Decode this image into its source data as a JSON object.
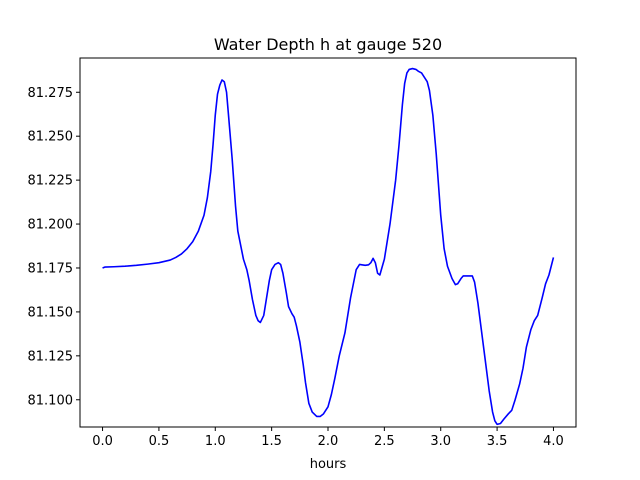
{
  "chart_data": {
    "type": "line",
    "title": "Water Depth h at gauge 520",
    "xlabel": "hours",
    "ylabel": "",
    "xlim": [
      -0.2,
      4.2
    ],
    "ylim": [
      81.0845,
      81.2945
    ],
    "grid": false,
    "legend": "none",
    "xticks": [
      0.0,
      0.5,
      1.0,
      1.5,
      2.0,
      2.5,
      3.0,
      3.5,
      4.0
    ],
    "xtick_labels": [
      "0.0",
      "0.5",
      "1.0",
      "1.5",
      "2.0",
      "2.5",
      "3.0",
      "3.5",
      "4.0"
    ],
    "yticks": [
      81.1,
      81.125,
      81.15,
      81.175,
      81.2,
      81.225,
      81.25,
      81.275
    ],
    "ytick_labels": [
      "81.100",
      "81.125",
      "81.150",
      "81.175",
      "81.200",
      "81.225",
      "81.250",
      "81.275"
    ],
    "series": [
      {
        "color": "#0000ff",
        "x": [
          0.0,
          0.02,
          0.1,
          0.2,
          0.3,
          0.4,
          0.5,
          0.6,
          0.65,
          0.7,
          0.75,
          0.8,
          0.85,
          0.9,
          0.93,
          0.96,
          0.98,
          1.0,
          1.02,
          1.04,
          1.06,
          1.08,
          1.1,
          1.12,
          1.15,
          1.18,
          1.2,
          1.25,
          1.28,
          1.3,
          1.33,
          1.36,
          1.38,
          1.4,
          1.43,
          1.45,
          1.48,
          1.5,
          1.53,
          1.56,
          1.58,
          1.6,
          1.63,
          1.65,
          1.68,
          1.7,
          1.72,
          1.75,
          1.78,
          1.8,
          1.83,
          1.86,
          1.9,
          1.93,
          1.96,
          2.0,
          2.03,
          2.06,
          2.1,
          2.15,
          2.2,
          2.25,
          2.28,
          2.3,
          2.33,
          2.36,
          2.38,
          2.4,
          2.42,
          2.44,
          2.46,
          2.5,
          2.55,
          2.6,
          2.63,
          2.66,
          2.68,
          2.7,
          2.72,
          2.75,
          2.78,
          2.8,
          2.83,
          2.86,
          2.88,
          2.9,
          2.93,
          2.96,
          3.0,
          3.03,
          3.06,
          3.1,
          3.13,
          3.15,
          3.18,
          3.2,
          3.22,
          3.25,
          3.28,
          3.3,
          3.33,
          3.36,
          3.4,
          3.43,
          3.46,
          3.48,
          3.5,
          3.53,
          3.56,
          3.6,
          3.63,
          3.66,
          3.7,
          3.73,
          3.76,
          3.8,
          3.83,
          3.86,
          3.9,
          3.93,
          3.96,
          4.0
        ],
        "y": [
          81.175,
          81.1755,
          81.1757,
          81.176,
          81.1765,
          81.1772,
          81.178,
          81.1795,
          81.181,
          81.183,
          81.186,
          81.19,
          81.196,
          81.205,
          81.215,
          81.23,
          81.245,
          81.262,
          81.274,
          81.279,
          81.282,
          81.281,
          81.275,
          81.26,
          81.237,
          81.21,
          81.196,
          81.18,
          81.174,
          81.168,
          81.157,
          81.148,
          81.145,
          81.144,
          81.148,
          81.156,
          81.168,
          81.174,
          81.177,
          81.178,
          81.177,
          81.172,
          81.161,
          81.153,
          81.149,
          81.147,
          81.142,
          81.133,
          81.12,
          81.11,
          81.098,
          81.093,
          81.0905,
          81.0905,
          81.092,
          81.096,
          81.103,
          81.112,
          81.125,
          81.138,
          81.158,
          81.174,
          81.177,
          81.1768,
          81.1765,
          81.1768,
          81.178,
          81.1805,
          81.178,
          81.172,
          81.171,
          81.18,
          81.2,
          81.225,
          81.245,
          81.268,
          81.28,
          81.286,
          81.288,
          81.2885,
          81.288,
          81.287,
          81.286,
          81.283,
          81.281,
          81.276,
          81.262,
          81.24,
          81.205,
          81.186,
          81.176,
          81.169,
          81.1655,
          81.166,
          81.169,
          81.1705,
          81.1705,
          81.1705,
          81.1705,
          81.167,
          81.155,
          81.14,
          81.12,
          81.105,
          81.093,
          81.088,
          81.086,
          81.0865,
          81.089,
          81.092,
          81.094,
          81.1,
          81.109,
          81.118,
          81.13,
          81.14,
          81.145,
          81.148,
          81.158,
          81.166,
          81.171,
          81.181
        ]
      }
    ]
  }
}
